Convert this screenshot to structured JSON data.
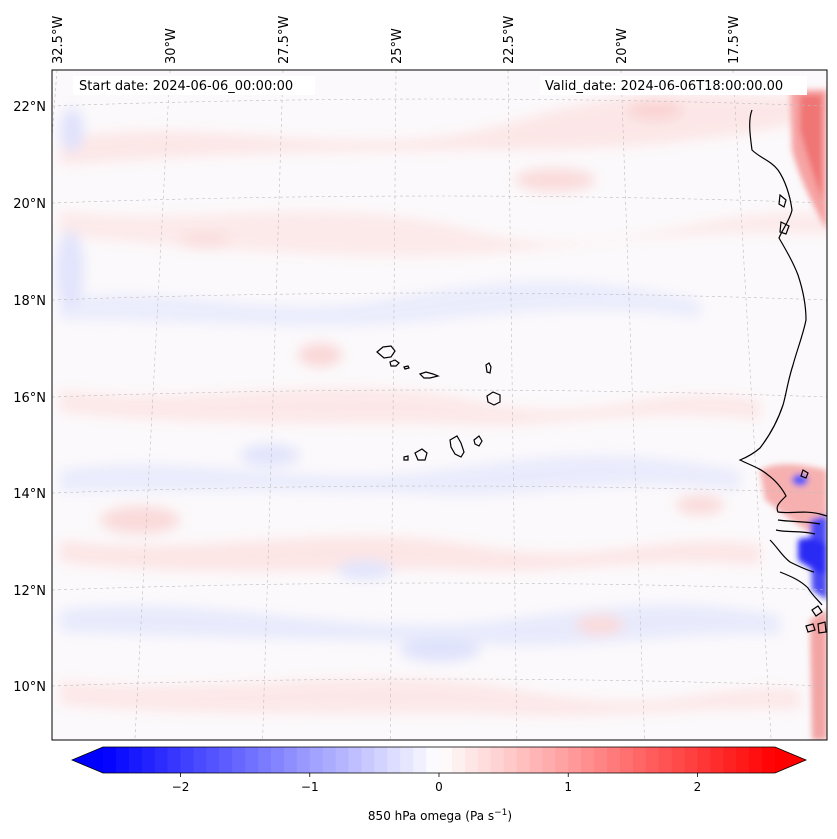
{
  "map": {
    "start_label": "Start date: 2024-06-06_00:00:00",
    "valid_label": "Valid_date: 2024-06-06T18:00:00.00",
    "projection": "lambert-conformal",
    "extent": {
      "lon_min": -33.0,
      "lon_max": -15.5,
      "lat_min": 9.0,
      "lat_max": 22.5
    },
    "field": "850 hPa omega",
    "lon_ticks": [
      {
        "value": -32.5,
        "label": "32.5°W"
      },
      {
        "value": -30.0,
        "label": "30°W"
      },
      {
        "value": -27.5,
        "label": "27.5°W"
      },
      {
        "value": -25.0,
        "label": "25°W"
      },
      {
        "value": -22.5,
        "label": "22.5°W"
      },
      {
        "value": -20.0,
        "label": "20°W"
      },
      {
        "value": -17.5,
        "label": "17.5°W"
      }
    ],
    "lat_ticks": [
      {
        "value": 22,
        "label": "22°N"
      },
      {
        "value": 20,
        "label": "20°N"
      },
      {
        "value": 18,
        "label": "18°N"
      },
      {
        "value": 16,
        "label": "16°N"
      },
      {
        "value": 14,
        "label": "14°N"
      },
      {
        "value": 12,
        "label": "12°N"
      },
      {
        "value": 10,
        "label": "10°N"
      }
    ],
    "features": [
      "Cape Verde islands",
      "West African coastline"
    ],
    "colors": {
      "coast": "#000000",
      "grid": "#bdbdbd",
      "frame": "#000000"
    }
  },
  "colorbar": {
    "label_prefix": "850 hPa omega (Pa s",
    "label_exp": "−1",
    "label_suffix": ")",
    "vmin": -2.6,
    "vmax": 2.6,
    "cmap": "bwr",
    "extend": "both",
    "ticks": [
      {
        "value": -2,
        "label": "−2"
      },
      {
        "value": -1,
        "label": "−1"
      },
      {
        "value": 0,
        "label": "0"
      },
      {
        "value": 1,
        "label": "1"
      },
      {
        "value": 2,
        "label": "2"
      }
    ]
  }
}
